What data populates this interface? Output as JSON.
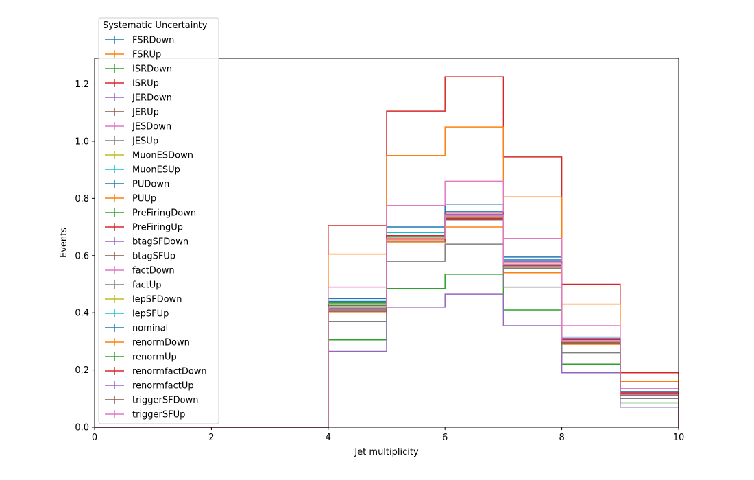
{
  "chart_data": {
    "type": "line",
    "title": "",
    "xlabel": "Jet multiplicity",
    "ylabel": "Events",
    "xlim": [
      0,
      10
    ],
    "ylim": [
      0,
      1.29
    ],
    "xticks": [
      0,
      2,
      4,
      6,
      8,
      10
    ],
    "yticks": [
      0.0,
      0.2,
      0.4,
      0.6,
      0.8,
      1.0,
      1.2
    ],
    "xtick_labels": [
      "0",
      "2",
      "4",
      "6",
      "8",
      "10"
    ],
    "ytick_labels": [
      "0.0",
      "0.2",
      "0.4",
      "0.6",
      "0.8",
      "1.0",
      "1.2"
    ],
    "bin_edges": [
      0,
      1,
      2,
      3,
      4,
      5,
      6,
      7,
      8,
      9,
      10
    ],
    "grid": false,
    "legend_title": "Systematic Uncertainty",
    "legend_placement": "upper-left outside",
    "series": [
      {
        "name": "FSRDown",
        "color": "#1f77b4",
        "values": [
          0,
          0,
          0,
          0,
          0.44,
          0.7,
          0.78,
          0.595,
          0.315,
          0.125
        ]
      },
      {
        "name": "FSRUp",
        "color": "#ff7f0e",
        "values": [
          0,
          0,
          0,
          0,
          0.4,
          0.645,
          0.7,
          0.54,
          0.29,
          0.11
        ]
      },
      {
        "name": "ISRDown",
        "color": "#2ca02c",
        "values": [
          0,
          0,
          0,
          0,
          0.305,
          0.485,
          0.535,
          0.41,
          0.22,
          0.085
        ]
      },
      {
        "name": "ISRUp",
        "color": "#d62728",
        "values": [
          0,
          0,
          0,
          0,
          0.705,
          1.105,
          1.225,
          0.945,
          0.5,
          0.19
        ]
      },
      {
        "name": "JERDown",
        "color": "#9467bd",
        "values": [
          0,
          0,
          0,
          0,
          0.43,
          0.66,
          0.745,
          0.575,
          0.305,
          0.115
        ]
      },
      {
        "name": "JERUp",
        "color": "#8c564b",
        "values": [
          0,
          0,
          0,
          0,
          0.42,
          0.665,
          0.73,
          0.565,
          0.3,
          0.115
        ]
      },
      {
        "name": "JESDown",
        "color": "#e377c2",
        "values": [
          0,
          0,
          0,
          0,
          0.435,
          0.67,
          0.75,
          0.58,
          0.305,
          0.12
        ]
      },
      {
        "name": "JESUp",
        "color": "#7f7f7f",
        "values": [
          0,
          0,
          0,
          0,
          0.415,
          0.65,
          0.725,
          0.555,
          0.295,
          0.11
        ]
      },
      {
        "name": "MuonESDown",
        "color": "#bcbd22",
        "values": [
          0,
          0,
          0,
          0,
          0.425,
          0.66,
          0.74,
          0.57,
          0.3,
          0.115
        ]
      },
      {
        "name": "MuonESUp",
        "color": "#17becf",
        "values": [
          0,
          0,
          0,
          0,
          0.43,
          0.68,
          0.75,
          0.575,
          0.305,
          0.115
        ]
      },
      {
        "name": "PUDown",
        "color": "#1f77b4",
        "values": [
          0,
          0,
          0,
          0,
          0.45,
          0.665,
          0.755,
          0.585,
          0.31,
          0.12
        ]
      },
      {
        "name": "PUUp",
        "color": "#ff7f0e",
        "values": [
          0,
          0,
          0,
          0,
          0.605,
          0.95,
          1.05,
          0.805,
          0.43,
          0.16
        ]
      },
      {
        "name": "PreFiringDown",
        "color": "#2ca02c",
        "values": [
          0,
          0,
          0,
          0,
          0.435,
          0.67,
          0.745,
          0.57,
          0.3,
          0.115
        ]
      },
      {
        "name": "PreFiringUp",
        "color": "#d62728",
        "values": [
          0,
          0,
          0,
          0,
          0.425,
          0.66,
          0.73,
          0.56,
          0.295,
          0.11
        ]
      },
      {
        "name": "btagSFDown",
        "color": "#9467bd",
        "values": [
          0,
          0,
          0,
          0,
          0.265,
          0.42,
          0.465,
          0.355,
          0.19,
          0.07
        ]
      },
      {
        "name": "btagSFUp",
        "color": "#8c564b",
        "values": [
          0,
          0,
          0,
          0,
          0.41,
          0.66,
          0.725,
          0.56,
          0.295,
          0.11
        ]
      },
      {
        "name": "factDown",
        "color": "#e377c2",
        "values": [
          0,
          0,
          0,
          0,
          0.49,
          0.775,
          0.86,
          0.66,
          0.355,
          0.135
        ]
      },
      {
        "name": "factUp",
        "color": "#7f7f7f",
        "values": [
          0,
          0,
          0,
          0,
          0.37,
          0.58,
          0.64,
          0.49,
          0.26,
          0.1
        ]
      },
      {
        "name": "lepSFDown",
        "color": "#bcbd22",
        "values": [
          0,
          0,
          0,
          0,
          0.42,
          0.66,
          0.735,
          0.565,
          0.295,
          0.11
        ]
      },
      {
        "name": "lepSFUp",
        "color": "#17becf",
        "values": [
          0,
          0,
          0,
          0,
          0.43,
          0.665,
          0.745,
          0.57,
          0.3,
          0.115
        ]
      },
      {
        "name": "nominal",
        "color": "#1f77b4",
        "values": [
          0,
          0,
          0,
          0,
          0.425,
          0.66,
          0.74,
          0.57,
          0.3,
          0.115
        ]
      },
      {
        "name": "renormDown",
        "color": "#ff7f0e",
        "values": [
          0,
          0,
          0,
          0,
          0.42,
          0.655,
          0.735,
          0.565,
          0.3,
          0.115
        ]
      },
      {
        "name": "renormUp",
        "color": "#2ca02c",
        "values": [
          0,
          0,
          0,
          0,
          0.425,
          0.665,
          0.745,
          0.575,
          0.305,
          0.115
        ]
      },
      {
        "name": "renormfactDown",
        "color": "#d62728",
        "values": [
          0,
          0,
          0,
          0,
          0.43,
          0.67,
          0.75,
          0.575,
          0.305,
          0.12
        ]
      },
      {
        "name": "renormfactUp",
        "color": "#9467bd",
        "values": [
          0,
          0,
          0,
          0,
          0.415,
          0.66,
          0.745,
          0.58,
          0.31,
          0.115
        ]
      },
      {
        "name": "triggerSFDown",
        "color": "#8c564b",
        "values": [
          0,
          0,
          0,
          0,
          0.405,
          0.65,
          0.735,
          0.565,
          0.295,
          0.11
        ]
      },
      {
        "name": "triggerSFUp",
        "color": "#e377c2",
        "values": [
          0,
          0,
          0,
          0,
          0.42,
          0.66,
          0.74,
          0.57,
          0.3,
          0.115
        ]
      }
    ]
  }
}
